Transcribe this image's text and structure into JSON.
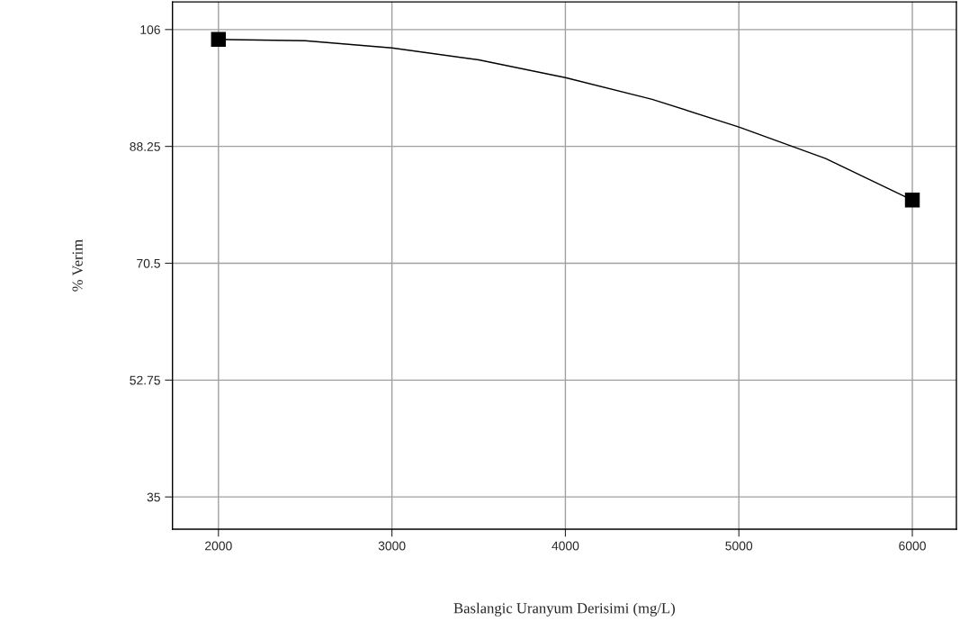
{
  "chart_data": {
    "type": "line",
    "xlabel": "Baslangic Uranyum Derisimi (mg/L)",
    "ylabel": "% Verim",
    "series": [
      {
        "color": "#000000",
        "marker": "none",
        "x": [
          2000,
          2500,
          3000,
          3500,
          4000,
          4500,
          5000,
          5500,
          6000
        ],
        "values": [
          104.5,
          104.3,
          103.2,
          101.4,
          98.7,
          95.4,
          91.2,
          86.4,
          80.1
        ]
      },
      {
        "type": "scatter",
        "color": "#000000",
        "marker": "square",
        "x": [
          2000,
          6000
        ],
        "values": [
          104.5,
          80.1
        ]
      }
    ],
    "xlim": [
      1735,
      6254
    ],
    "xticks": [
      2000,
      3000,
      4000,
      5000,
      6000
    ],
    "ylim": [
      30.1,
      110.2
    ],
    "yticks": [
      35,
      52.75,
      70.5,
      88.25,
      106
    ],
    "grid": true
  }
}
